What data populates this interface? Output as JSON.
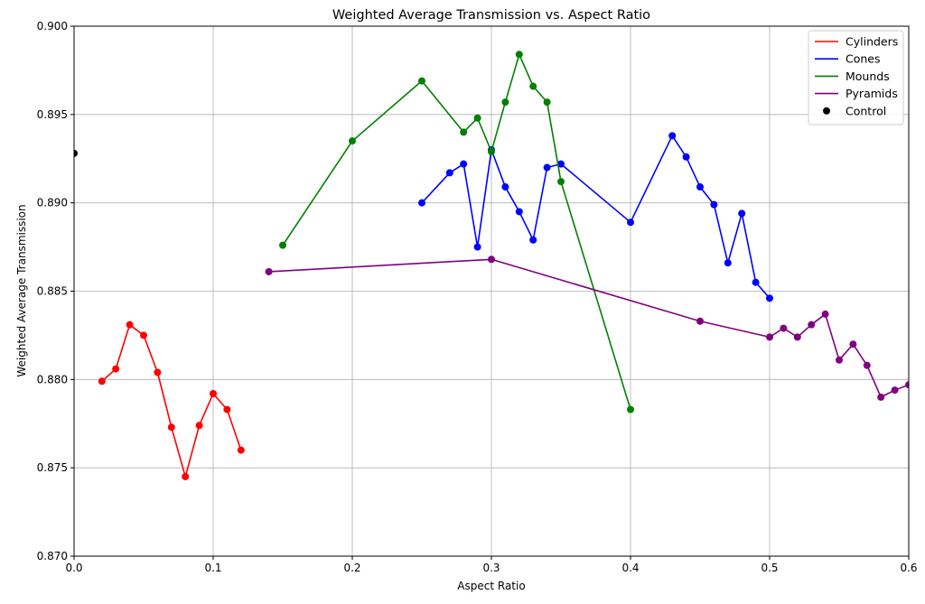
{
  "chart_data": {
    "type": "line",
    "title": "Weighted Average Transmission vs. Aspect Ratio",
    "xlabel": "Aspect Ratio",
    "ylabel": "Weighted Average Transmission",
    "xlim": [
      0.0,
      0.6
    ],
    "ylim": [
      0.87,
      0.9
    ],
    "xticks": [
      "0.0",
      "0.1",
      "0.2",
      "0.3",
      "0.4",
      "0.5",
      "0.6"
    ],
    "yticks": [
      "0.870",
      "0.875",
      "0.880",
      "0.885",
      "0.890",
      "0.895",
      "0.900"
    ],
    "grid": true,
    "legend_position": "top-right",
    "series": [
      {
        "name": "Cylinders",
        "color": "#ff0000",
        "style": "line+markers",
        "x": [
          0.02,
          0.03,
          0.04,
          0.05,
          0.06,
          0.07,
          0.08,
          0.09,
          0.1,
          0.11,
          0.12
        ],
        "y": [
          0.8799,
          0.8806,
          0.8831,
          0.8825,
          0.8804,
          0.8773,
          0.8745,
          0.8774,
          0.8792,
          0.8783,
          0.876
        ]
      },
      {
        "name": "Cones",
        "color": "#0000ff",
        "style": "line+markers",
        "x": [
          0.25,
          0.27,
          0.28,
          0.29,
          0.3,
          0.31,
          0.32,
          0.33,
          0.34,
          0.35,
          0.4,
          0.43,
          0.44,
          0.45,
          0.46,
          0.47,
          0.48,
          0.49,
          0.5
        ],
        "y": [
          0.89,
          0.8917,
          0.8922,
          0.8875,
          0.893,
          0.8909,
          0.8895,
          0.8879,
          0.892,
          0.8922,
          0.8889,
          0.8938,
          0.8926,
          0.8909,
          0.8899,
          0.8866,
          0.8894,
          0.8855,
          0.8846
        ]
      },
      {
        "name": "Mounds",
        "color": "#008000",
        "style": "line+markers",
        "x": [
          0.15,
          0.2,
          0.25,
          0.28,
          0.29,
          0.3,
          0.31,
          0.32,
          0.33,
          0.34,
          0.35,
          0.4
        ],
        "y": [
          0.8876,
          0.8935,
          0.8969,
          0.894,
          0.8948,
          0.8929,
          0.8957,
          0.8984,
          0.8966,
          0.8957,
          0.8912,
          0.8783
        ]
      },
      {
        "name": "Pyramids",
        "color": "#800080",
        "style": "line+markers",
        "x": [
          0.14,
          0.3,
          0.45,
          0.5,
          0.51,
          0.52,
          0.53,
          0.54,
          0.55,
          0.56,
          0.57,
          0.58,
          0.59,
          0.6
        ],
        "y": [
          0.8861,
          0.8868,
          0.8833,
          0.8824,
          0.8829,
          0.8824,
          0.8831,
          0.8837,
          0.8811,
          0.882,
          0.8808,
          0.879,
          0.8794,
          0.8797
        ]
      },
      {
        "name": "Control",
        "color": "#000000",
        "style": "markers",
        "x": [
          0.0
        ],
        "y": [
          0.8928
        ]
      }
    ]
  }
}
